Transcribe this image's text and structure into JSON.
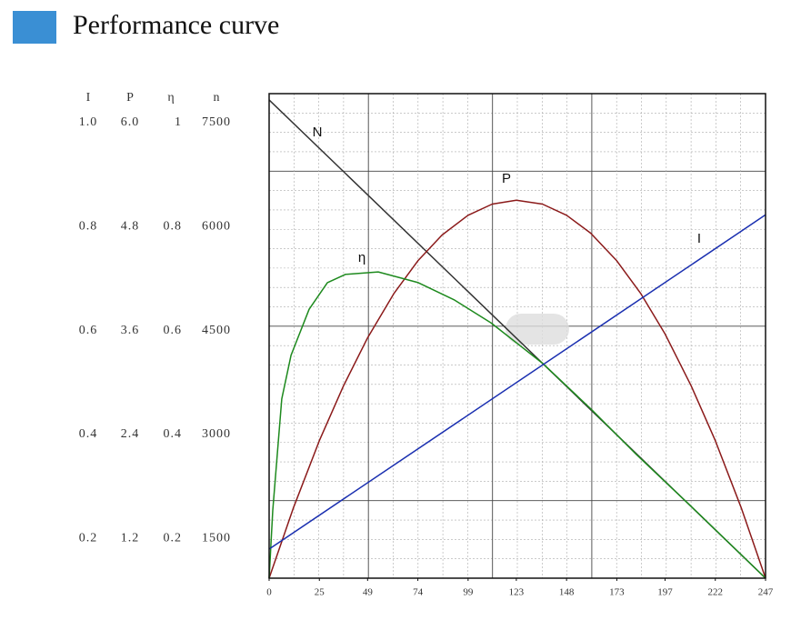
{
  "header": {
    "title": "Performance curve"
  },
  "scale_table": {
    "headers": [
      "I",
      "P",
      "η",
      "n"
    ],
    "rows": [
      [
        "1.0",
        "6.0",
        "1",
        "7500"
      ],
      [
        "0.8",
        "4.8",
        "0.8",
        "6000"
      ],
      [
        "0.6",
        "3.6",
        "0.6",
        "4500"
      ],
      [
        "0.4",
        "2.4",
        "0.4",
        "3000"
      ],
      [
        "0.2",
        "1.2",
        "0.2",
        "1500"
      ]
    ]
  },
  "chart_data": {
    "type": "line",
    "xlim": [
      0,
      247
    ],
    "xticks": [
      0,
      25,
      49,
      74,
      99,
      123,
      148,
      173,
      197,
      222,
      247
    ],
    "ylim": [
      0,
      1
    ],
    "grid": true,
    "series": [
      {
        "name": "N",
        "color": "#333333",
        "x": [
          0,
          247
        ],
        "values": [
          0.987,
          0
        ]
      },
      {
        "name": "P",
        "color": "#8b1a1a",
        "x": [
          0,
          12,
          25,
          37,
          49,
          62,
          74,
          86,
          99,
          111,
          123,
          136,
          148,
          160,
          173,
          185,
          197,
          210,
          222,
          235,
          247
        ],
        "values": [
          0,
          0.144,
          0.284,
          0.397,
          0.496,
          0.587,
          0.655,
          0.708,
          0.749,
          0.772,
          0.78,
          0.772,
          0.749,
          0.712,
          0.655,
          0.587,
          0.504,
          0.397,
          0.284,
          0.144,
          0
        ]
      },
      {
        "name": "η",
        "color": "#1e8a1e",
        "x": [
          0,
          1.8,
          6.3,
          10.9,
          19.9,
          29,
          38,
          54.3,
          74.2,
          92.3,
          110.4,
          136.2,
          160.2,
          182.8,
          210,
          247
        ],
        "values": [
          0,
          0.14,
          0.37,
          0.46,
          0.555,
          0.61,
          0.627,
          0.632,
          0.61,
          0.574,
          0.527,
          0.443,
          0.349,
          0.255,
          0.148,
          0
        ]
      },
      {
        "name": "I",
        "color": "#1a2fb0",
        "x": [
          0,
          247
        ],
        "values": [
          0.06,
          0.75
        ]
      }
    ]
  }
}
